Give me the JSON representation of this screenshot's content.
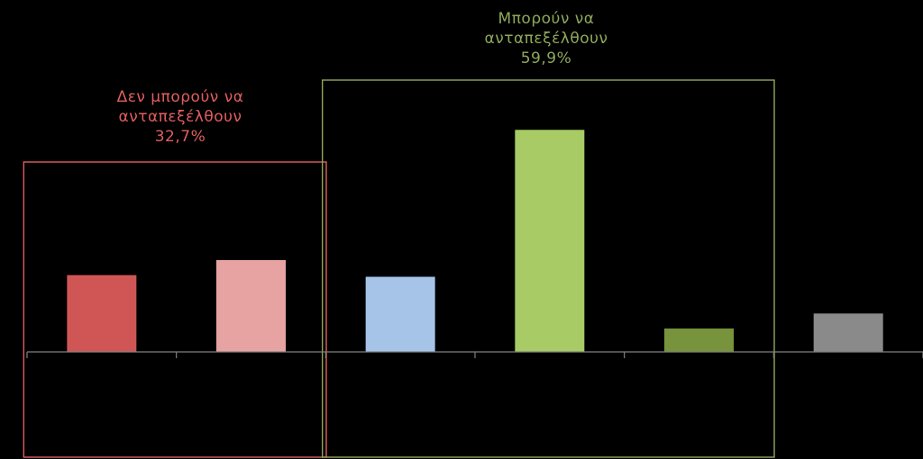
{
  "chart_data": {
    "type": "bar",
    "categories": [
      "",
      "",
      "",
      "",
      "",
      ""
    ],
    "values": [
      23,
      27.5,
      22.5,
      66.5,
      7,
      11.5
    ],
    "colors": [
      "#d05655",
      "#e6a3a2",
      "#a5c4e8",
      "#a8cb66",
      "#77933c",
      "#8a8a8a"
    ],
    "ylim": [
      0,
      100
    ],
    "grid": false,
    "legend": "none",
    "groups": [
      {
        "line1": "Δεν μπορούν να",
        "line2": "ανταπεξέλθουν",
        "value": "32,7%",
        "color": "#e05e5e",
        "bars": [
          0,
          1
        ]
      },
      {
        "line1": "Μπορούν να",
        "line2": "ανταπεξέλθουν",
        "value": "59,9%",
        "color": "#8fa85a",
        "bars": [
          2,
          3,
          4
        ]
      }
    ]
  }
}
